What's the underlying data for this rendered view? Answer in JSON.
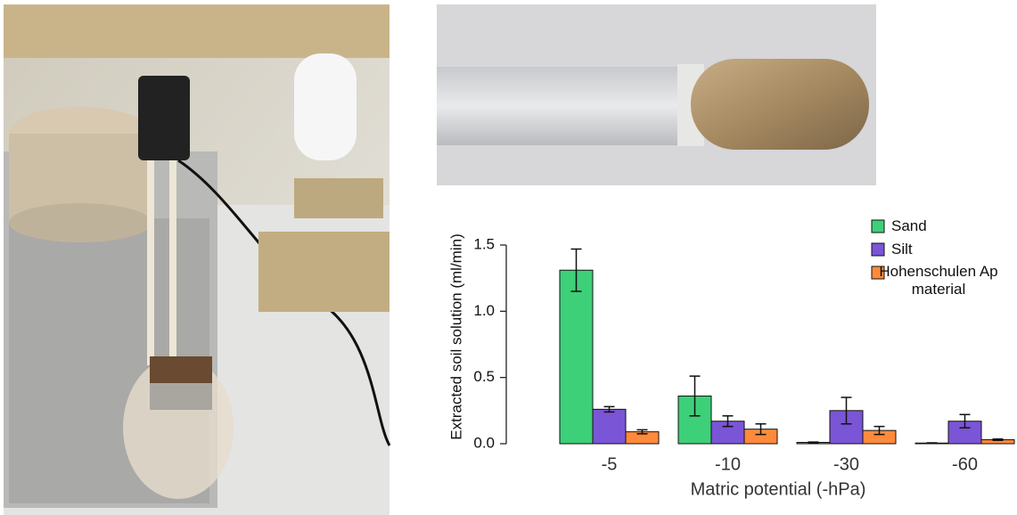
{
  "chart_data": {
    "type": "bar",
    "x_label": "Matric potential (-hPa)",
    "y_label": "Extracted soil solution (ml/min)",
    "categories": [
      "-5",
      "-10",
      "-30",
      "-60"
    ],
    "series": [
      {
        "name": "Sand",
        "color": "#3ecf79",
        "values": [
          1.31,
          0.36,
          0.01,
          0.005
        ],
        "errors": [
          0.16,
          0.15,
          0.003,
          0.002
        ]
      },
      {
        "name": "Silt",
        "color": "#7a55d6",
        "values": [
          0.26,
          0.17,
          0.25,
          0.17
        ],
        "errors": [
          0.02,
          0.04,
          0.1,
          0.05
        ]
      },
      {
        "name": "Hohenschulen Ap material",
        "color": "#ff8a3c",
        "values": [
          0.09,
          0.11,
          0.1,
          0.03
        ],
        "errors": [
          0.015,
          0.04,
          0.03,
          0.005
        ]
      }
    ],
    "ylim": [
      0,
      1.5
    ],
    "yticks": [
      {
        "value": 0,
        "label": "0.0"
      },
      0.5,
      {
        "value": 1,
        "label": "1.0"
      },
      {
        "value": 1.5,
        "label": "1.5"
      }
    ]
  }
}
